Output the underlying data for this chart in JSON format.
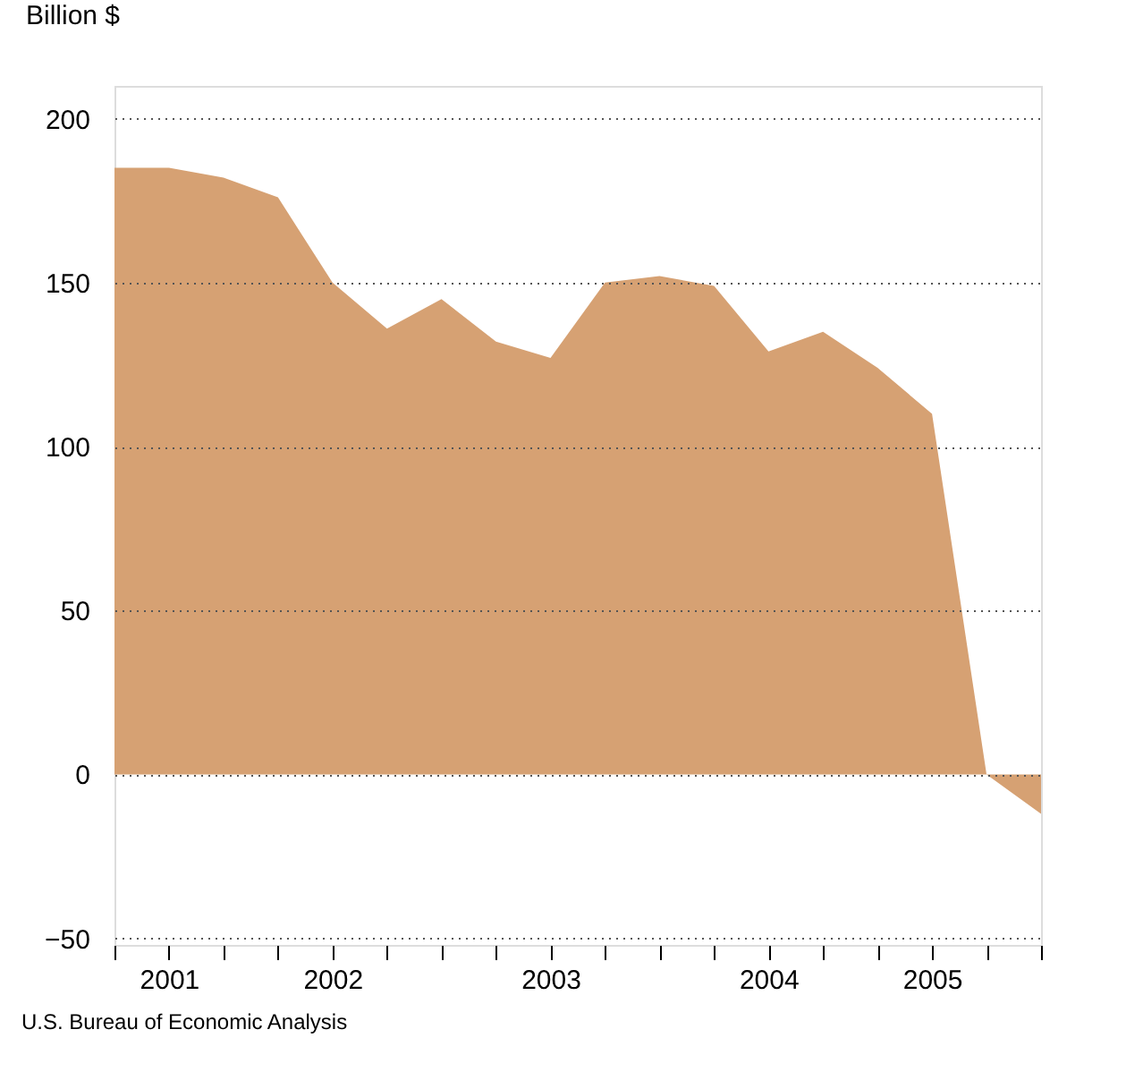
{
  "chart_data": {
    "type": "area",
    "ylabel": "Billion $",
    "categories": [
      null,
      "2001",
      null,
      null,
      "2002",
      null,
      null,
      null,
      "2003",
      null,
      null,
      null,
      "2004",
      null,
      null,
      "2005",
      null,
      null
    ],
    "values": [
      185,
      185,
      182,
      176,
      150,
      136,
      145,
      132,
      127,
      150,
      152,
      149,
      129,
      135,
      124,
      110,
      0,
      -12
    ],
    "color": "#d6a173",
    "ylim": [
      -52,
      210
    ],
    "yticks": [
      -50,
      0,
      50,
      100,
      150,
      200
    ],
    "grid": "y",
    "annotations": [
      "U.S. Bureau of Economic Analysis"
    ]
  }
}
